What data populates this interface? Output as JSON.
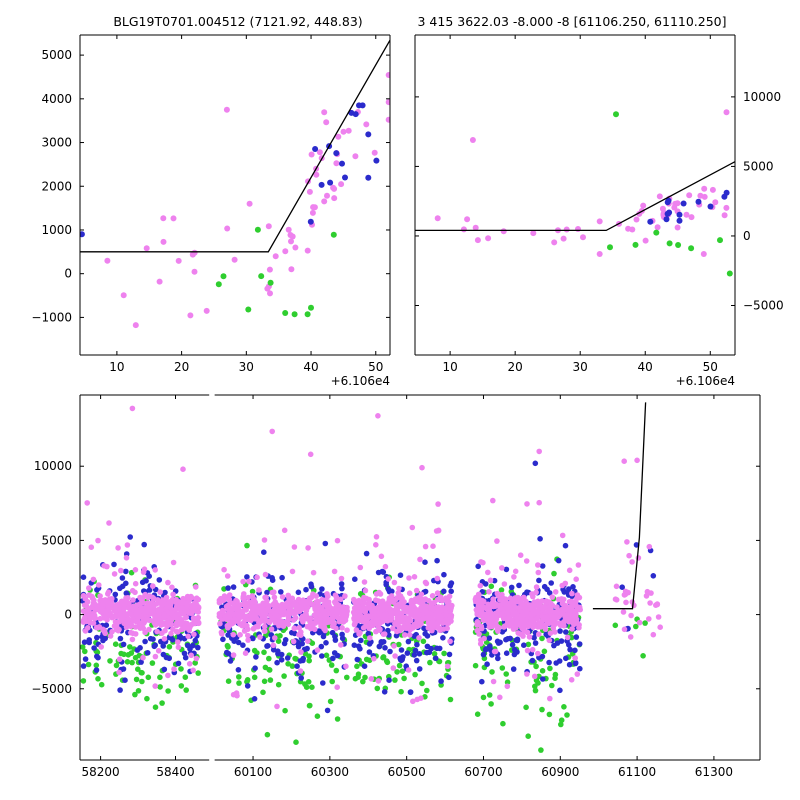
{
  "figure": {
    "bg": "#ffffff",
    "colors": {
      "violet": "#ee82ee",
      "blue": "#2b2bcc",
      "green": "#2fce2f",
      "line": "#000000"
    }
  },
  "chart_data": [
    {
      "id": "tl",
      "type": "scatter",
      "title": "BLG19T0701.004512 (7121.92, 448.83)",
      "xlim": [
        4.3,
        52.2
      ],
      "ylim": [
        -1860,
        5460
      ],
      "xticks": [
        10,
        20,
        30,
        40,
        50
      ],
      "yticks": [
        -1000,
        0,
        1000,
        2000,
        3000,
        4000,
        5000
      ],
      "ytick_side": "left",
      "x_offset_label": "+6.106e4",
      "line": [
        [
          4.3,
          500
        ],
        [
          33.4,
          500
        ],
        [
          52.2,
          5340
        ]
      ],
      "clusters": [
        {
          "color": "violet",
          "seed": 11,
          "n": 16,
          "x": [
            6.5,
            32
          ],
          "y": [
            -1350,
            1750
          ]
        },
        {
          "color": "violet",
          "seed": 12,
          "n": 40,
          "xg": [
            43,
            4.5,
            33,
            52
          ],
          "trend": [
            33,
            400,
            210,
            750
          ],
          "yclip": [
            -450,
            4650
          ]
        },
        {
          "color": "violet",
          "seed": 13,
          "n": 6,
          "x": [
            33,
            40
          ],
          "y": [
            -350,
            900
          ]
        },
        {
          "color": "green",
          "seed": 14,
          "n": 9,
          "x": [
            22,
            45
          ],
          "y": [
            -950,
            1150
          ]
        },
        {
          "color": "blue",
          "seed": 15,
          "n": 15,
          "xg": [
            45,
            4,
            36,
            52
          ],
          "trend": [
            33,
            500,
            190,
            650
          ],
          "yclip": [
            900,
            3850
          ]
        }
      ],
      "points": [
        [
          27,
          3750,
          "violet"
        ],
        [
          4.6,
          900,
          "blue"
        ],
        [
          30.5,
          1600,
          "violet"
        ],
        [
          36,
          -900,
          "green"
        ],
        [
          40,
          -780,
          "green"
        ]
      ]
    },
    {
      "id": "tr",
      "type": "scatter",
      "title": "3 415 3622.03 -8.000 -8 [61106.250, 61110.250]",
      "xlim": [
        4.6,
        53.8
      ],
      "ylim": [
        -8560,
        14450
      ],
      "xticks": [
        10,
        20,
        30,
        40,
        50
      ],
      "yticks": [
        -5000,
        0,
        5000,
        10000
      ],
      "ytick_side": "right",
      "x_offset_label": "+6.106e4",
      "line": [
        [
          4.6,
          400
        ],
        [
          34,
          400
        ],
        [
          53.8,
          5340
        ]
      ],
      "clusters": [
        {
          "color": "violet",
          "seed": 21,
          "n": 14,
          "x": [
            7,
            33
          ],
          "yg": [
            300,
            550,
            -900,
            1600
          ]
        },
        {
          "color": "violet",
          "seed": 22,
          "n": 38,
          "xg": [
            44,
            5,
            33,
            53.5
          ],
          "trend": [
            34,
            300,
            140,
            600
          ],
          "yclip": [
            -1300,
            3400
          ]
        },
        {
          "color": "green",
          "seed": 23,
          "n": 6,
          "x": [
            33,
            50
          ],
          "y": [
            -900,
            300
          ]
        },
        {
          "color": "blue",
          "seed": 24,
          "n": 13,
          "xg": [
            47,
            3.5,
            40,
            53.5
          ],
          "trend": [
            34,
            400,
            120,
            500
          ],
          "yclip": [
            300,
            3100
          ]
        }
      ],
      "points": [
        [
          13.5,
          6900,
          "violet"
        ],
        [
          52.5,
          8900,
          "violet"
        ],
        [
          35.5,
          8750,
          "green"
        ],
        [
          53,
          -2700,
          "green"
        ],
        [
          49,
          -1300,
          "violet"
        ],
        [
          51.5,
          -300,
          "green"
        ]
      ]
    },
    {
      "id": "bottom",
      "type": "scatter",
      "segments": [
        {
          "xlim": [
            58145,
            58490
          ],
          "frac": 0.19
        },
        {
          "xlim": [
            60000,
            61420
          ],
          "frac": 0.802
        }
      ],
      "gap_frac": 0.008,
      "ylim": [
        -9800,
        14800
      ],
      "xticks": [
        58200,
        58400,
        60100,
        60300,
        60500,
        60700,
        60900,
        61100,
        61300
      ],
      "yticks": [
        -5000,
        0,
        5000,
        10000
      ],
      "ytick_side": "left",
      "line": [
        [
          60985,
          400
        ],
        [
          61088,
          400
        ],
        [
          61106,
          5200
        ],
        [
          61122,
          14300
        ]
      ],
      "clusters": [
        {
          "color": "green",
          "seed": 31,
          "n": 95,
          "x": [
            58152,
            58462
          ],
          "yg": [
            -2400,
            2300,
            -9300,
            7300
          ]
        },
        {
          "color": "green",
          "seed": 32,
          "n": 95,
          "x": [
            60012,
            60345
          ],
          "yg": [
            -2400,
            2300,
            -9300,
            7300
          ]
        },
        {
          "color": "green",
          "seed": 33,
          "n": 90,
          "x": [
            60362,
            60618
          ],
          "yg": [
            -2400,
            2300,
            -9300,
            7300
          ]
        },
        {
          "color": "green",
          "seed": 34,
          "n": 95,
          "x": [
            60678,
            60952
          ],
          "yg": [
            -2400,
            2300,
            -9300,
            7300
          ]
        },
        {
          "color": "blue",
          "seed": 35,
          "n": 190,
          "x": [
            58152,
            58462
          ],
          "yg": [
            -500,
            1750,
            -6800,
            7000
          ]
        },
        {
          "color": "blue",
          "seed": 36,
          "n": 190,
          "x": [
            60012,
            60345
          ],
          "yg": [
            -500,
            1750,
            -6800,
            7000
          ]
        },
        {
          "color": "blue",
          "seed": 37,
          "n": 180,
          "x": [
            60362,
            60618
          ],
          "yg": [
            -500,
            1750,
            -6800,
            7000
          ]
        },
        {
          "color": "blue",
          "seed": 38,
          "n": 190,
          "x": [
            60678,
            60952
          ],
          "yg": [
            -500,
            1750,
            -6800,
            7000
          ]
        },
        {
          "color": "violet",
          "seed": 39,
          "n": 60,
          "x": [
            58152,
            58462
          ],
          "yg": [
            400,
            3100,
            -6200,
            9600
          ]
        },
        {
          "color": "violet",
          "seed": 40,
          "n": 60,
          "x": [
            60012,
            60345
          ],
          "yg": [
            400,
            3100,
            -6200,
            9600
          ]
        },
        {
          "color": "violet",
          "seed": 41,
          "n": 55,
          "x": [
            60362,
            60618
          ],
          "yg": [
            400,
            3100,
            -6200,
            9600
          ]
        },
        {
          "color": "violet",
          "seed": 42,
          "n": 60,
          "x": [
            60678,
            60952
          ],
          "yg": [
            400,
            3100,
            -6200,
            9600
          ]
        },
        {
          "color": "violet",
          "seed": 43,
          "n": 430,
          "x": [
            58152,
            58462
          ],
          "yg": [
            100,
            620,
            -2300,
            2700
          ]
        },
        {
          "color": "violet",
          "seed": 44,
          "n": 430,
          "x": [
            60012,
            60345
          ],
          "yg": [
            100,
            620,
            -2300,
            2700
          ]
        },
        {
          "color": "violet",
          "seed": 45,
          "n": 420,
          "x": [
            60362,
            60618
          ],
          "yg": [
            100,
            620,
            -2300,
            2700
          ]
        },
        {
          "color": "violet",
          "seed": 46,
          "n": 430,
          "x": [
            60678,
            60952
          ],
          "yg": [
            100,
            620,
            -2300,
            2700
          ]
        },
        {
          "color": "green",
          "seed": 47,
          "n": 5,
          "x": [
            61040,
            61160
          ],
          "y": [
            -3200,
            1200
          ]
        },
        {
          "color": "blue",
          "seed": 48,
          "n": 6,
          "x": [
            61045,
            61160
          ],
          "y": [
            -1500,
            6200
          ]
        },
        {
          "color": "violet",
          "seed": 49,
          "n": 26,
          "x": [
            61038,
            61162
          ],
          "yg": [
            300,
            900,
            -1700,
            2800
          ]
        },
        {
          "color": "violet",
          "seed": 50,
          "n": 6,
          "x": [
            61060,
            61140
          ],
          "y": [
            3000,
            10500
          ]
        }
      ],
      "points": [
        [
          58285,
          13900,
          "violet"
        ],
        [
          60150,
          12350,
          "violet"
        ],
        [
          60425,
          13400,
          "violet"
        ],
        [
          60845,
          11000,
          "violet"
        ],
        [
          60835,
          10200,
          "blue"
        ],
        [
          60540,
          9900,
          "violet"
        ],
        [
          58420,
          9800,
          "violet"
        ],
        [
          60250,
          10800,
          "violet"
        ],
        [
          61100,
          10400,
          "violet"
        ]
      ]
    }
  ]
}
